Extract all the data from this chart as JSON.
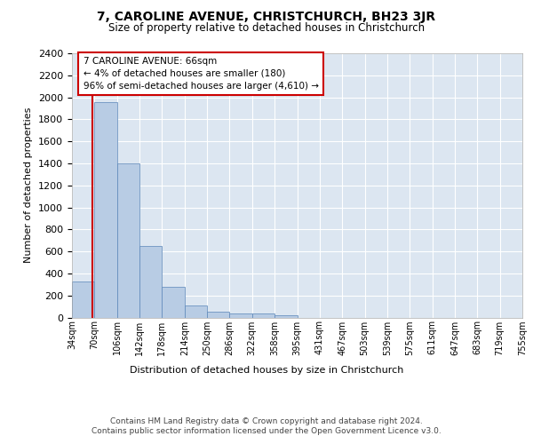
{
  "title": "7, CAROLINE AVENUE, CHRISTCHURCH, BH23 3JR",
  "subtitle": "Size of property relative to detached houses in Christchurch",
  "xlabel": "Distribution of detached houses by size in Christchurch",
  "ylabel": "Number of detached properties",
  "bar_values": [
    330,
    1960,
    1400,
    650,
    280,
    105,
    50,
    40,
    35,
    20,
    0,
    0,
    0,
    0,
    0,
    0,
    0,
    0,
    0,
    0
  ],
  "bar_labels": [
    "34sqm",
    "70sqm",
    "106sqm",
    "142sqm",
    "178sqm",
    "214sqm",
    "250sqm",
    "286sqm",
    "322sqm",
    "358sqm",
    "395sqm",
    "431sqm",
    "467sqm",
    "503sqm",
    "539sqm",
    "575sqm",
    "611sqm",
    "647sqm",
    "683sqm",
    "719sqm",
    "755sqm"
  ],
  "ylim": [
    0,
    2400
  ],
  "yticks": [
    0,
    200,
    400,
    600,
    800,
    1000,
    1200,
    1400,
    1600,
    1800,
    2000,
    2200,
    2400
  ],
  "bar_color": "#b8cce4",
  "bar_edge_color": "#5a86b8",
  "bg_color": "#dce6f1",
  "grid_color": "#ffffff",
  "annotation_box_text": "7 CAROLINE AVENUE: 66sqm\n← 4% of detached houses are smaller (180)\n96% of semi-detached houses are larger (4,610) →",
  "red_line_color": "#cc0000",
  "box_edge_color": "#cc0000",
  "footer_line1": "Contains HM Land Registry data © Crown copyright and database right 2024.",
  "footer_line2": "Contains public sector information licensed under the Open Government Licence v3.0."
}
